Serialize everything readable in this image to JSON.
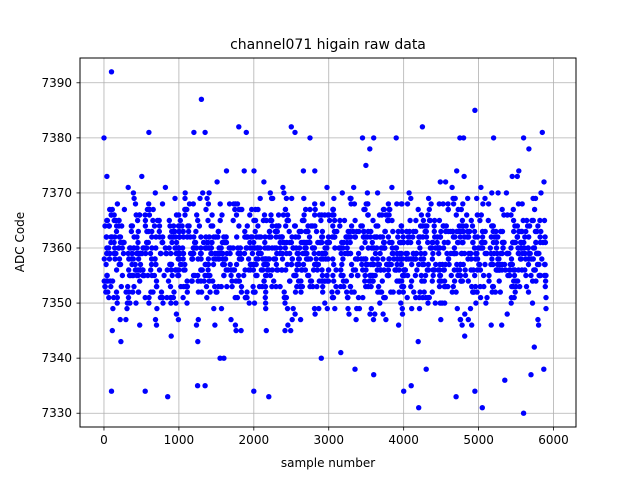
{
  "chart_data": {
    "type": "scatter",
    "title": "channel071 higain raw data",
    "xlabel": "sample number",
    "ylabel": "ADC Code",
    "xlim": [
      -320,
      6300
    ],
    "ylim": [
      7327.5,
      7394.5
    ],
    "xticks": [
      0,
      1000,
      2000,
      3000,
      4000,
      5000,
      6000
    ],
    "yticks": [
      7330,
      7340,
      7350,
      7360,
      7370,
      7380,
      7390
    ],
    "xtick_labels": [
      "0",
      "1000",
      "2000",
      "3000",
      "4000",
      "5000",
      "6000"
    ],
    "ytick_labels": [
      "7330",
      "7340",
      "7350",
      "7360",
      "7370",
      "7380",
      "7390"
    ],
    "grid": true,
    "marker_color": "#0000ff",
    "series": [
      {
        "generated_bulk": {
          "n": 1600,
          "x_range": [
            0,
            5900
          ],
          "center": 7359,
          "spread": 5.5,
          "min": 7340,
          "max": 7378,
          "quantization": 1
        },
        "points": [
          [
            100,
            7392
          ],
          [
            1300,
            7387
          ],
          [
            4950,
            7385
          ],
          [
            100,
            7334
          ],
          [
            550,
            7334
          ],
          [
            850,
            7333
          ],
          [
            1250,
            7335
          ],
          [
            1350,
            7335
          ],
          [
            2000,
            7334
          ],
          [
            2200,
            7333
          ],
          [
            4000,
            7334
          ],
          [
            4200,
            7331
          ],
          [
            4700,
            7333
          ],
          [
            4950,
            7334
          ],
          [
            5050,
            7331
          ],
          [
            5600,
            7330
          ],
          [
            5870,
            7338
          ],
          [
            2500,
            7382
          ],
          [
            2550,
            7381
          ],
          [
            1800,
            7382
          ],
          [
            4250,
            7382
          ],
          [
            4800,
            7380
          ],
          [
            5200,
            7380
          ],
          [
            5850,
            7381
          ],
          [
            600,
            7381
          ],
          [
            1200,
            7381
          ],
          [
            1350,
            7381
          ],
          [
            1900,
            7381
          ],
          [
            2750,
            7380
          ],
          [
            3450,
            7380
          ],
          [
            3600,
            7380
          ],
          [
            3900,
            7380
          ],
          [
            4750,
            7380
          ],
          [
            5600,
            7380
          ],
          [
            0,
            7380
          ],
          [
            1550,
            7340
          ],
          [
            1600,
            7340
          ],
          [
            2900,
            7340
          ],
          [
            3350,
            7338
          ],
          [
            3600,
            7337
          ],
          [
            4100,
            7335
          ],
          [
            4300,
            7338
          ],
          [
            5350,
            7336
          ],
          [
            5700,
            7337
          ]
        ]
      }
    ]
  }
}
